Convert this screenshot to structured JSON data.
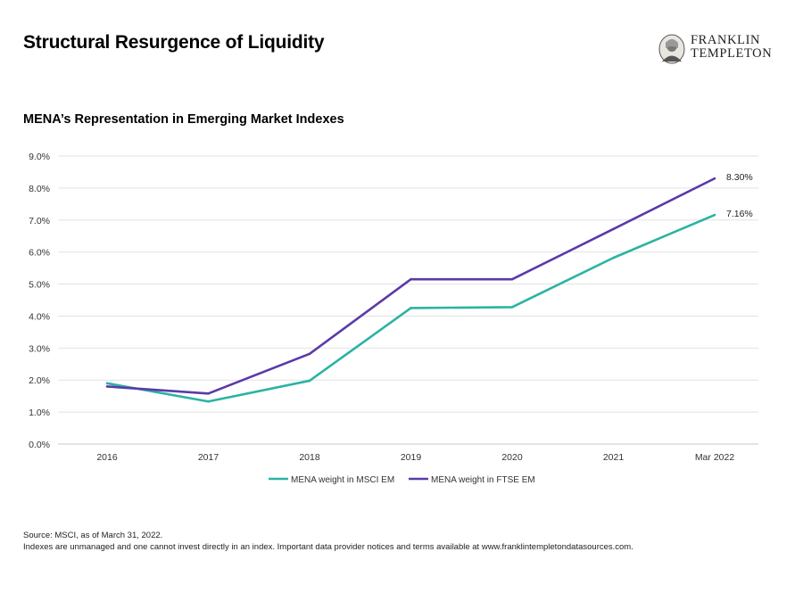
{
  "page": {
    "title": "Structural Resurgence of Liquidity",
    "logo": {
      "line1": "FRANKLIN",
      "line2": "TEMPLETON",
      "icon": "franklin-portrait-icon"
    },
    "footer": {
      "source": "Source: MSCI, as of March 31, 2022.",
      "disclaimer": "Indexes are unmanaged and one cannot invest directly in an index. Important data provider notices and terms available at www.franklintempletondatasources.com."
    }
  },
  "chart_data": {
    "type": "line",
    "title": "MENA’s Representation in Emerging Market Indexes",
    "categories": [
      "2016",
      "2017",
      "2018",
      "2019",
      "2020",
      "2021",
      "Mar 2022"
    ],
    "y_ticks": [
      "0.0%",
      "1.0%",
      "2.0%",
      "3.0%",
      "4.0%",
      "5.0%",
      "6.0%",
      "7.0%",
      "8.0%",
      "9.0%"
    ],
    "ylim": [
      0,
      9
    ],
    "grid": true,
    "legend_position": "bottom",
    "series": [
      {
        "name": "MENA weight in MSCI EM",
        "color": "#2bb3a3",
        "values": [
          1.9,
          1.33,
          1.98,
          4.25,
          4.28,
          5.82,
          7.16
        ],
        "end_label": "7.16%"
      },
      {
        "name": "MENA weight in FTSE EM",
        "color": "#5b3aa8",
        "values": [
          1.8,
          1.58,
          2.82,
          5.15,
          5.15,
          6.72,
          8.3
        ],
        "end_label": "8.30%"
      }
    ]
  }
}
